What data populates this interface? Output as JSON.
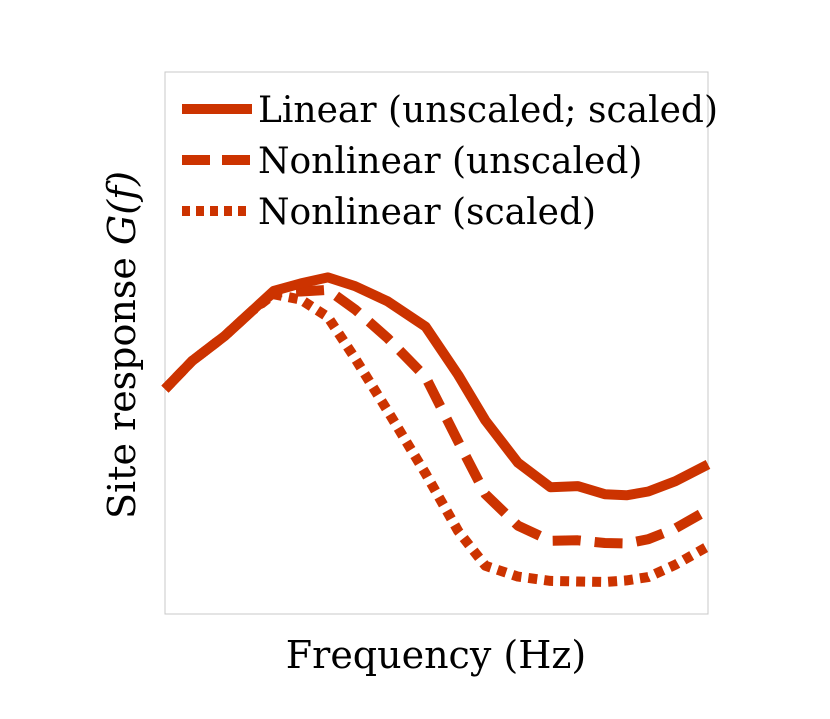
{
  "chart_data": {
    "type": "line",
    "title": "",
    "xlabel": "Frequency (Hz)",
    "ylabel_prefix": "Site response ",
    "ylabel_math": "G(f)",
    "xlim": [
      0,
      1
    ],
    "ylim": [
      0,
      1
    ],
    "grid": false,
    "legend_position": "top-left",
    "color": "#cc3300",
    "x": [
      0.0,
      0.05,
      0.11,
      0.16,
      0.2,
      0.25,
      0.3,
      0.35,
      0.41,
      0.48,
      0.54,
      0.59,
      0.65,
      0.71,
      0.76,
      0.81,
      0.85,
      0.89,
      0.94,
      1.0
    ],
    "series": [
      {
        "name": "Linear (unscaled; scaled)",
        "style": "solid",
        "values": [
          0.415,
          0.467,
          0.513,
          0.559,
          0.596,
          0.61,
          0.621,
          0.605,
          0.577,
          0.53,
          0.441,
          0.357,
          0.279,
          0.234,
          0.236,
          0.221,
          0.219,
          0.226,
          0.245,
          0.276
        ]
      },
      {
        "name": "Nonlinear (unscaled)",
        "style": "dashed",
        "values": [
          0.415,
          0.467,
          0.513,
          0.559,
          0.593,
          0.595,
          0.598,
          0.562,
          0.509,
          0.437,
          0.318,
          0.221,
          0.163,
          0.135,
          0.136,
          0.131,
          0.13,
          0.138,
          0.158,
          0.192
        ]
      },
      {
        "name": "Nonlinear (scaled)",
        "style": "dotted",
        "values": [
          0.415,
          0.467,
          0.513,
          0.559,
          0.59,
          0.58,
          0.548,
          0.472,
          0.375,
          0.259,
          0.153,
          0.089,
          0.069,
          0.061,
          0.06,
          0.059,
          0.062,
          0.068,
          0.091,
          0.125
        ]
      }
    ]
  }
}
